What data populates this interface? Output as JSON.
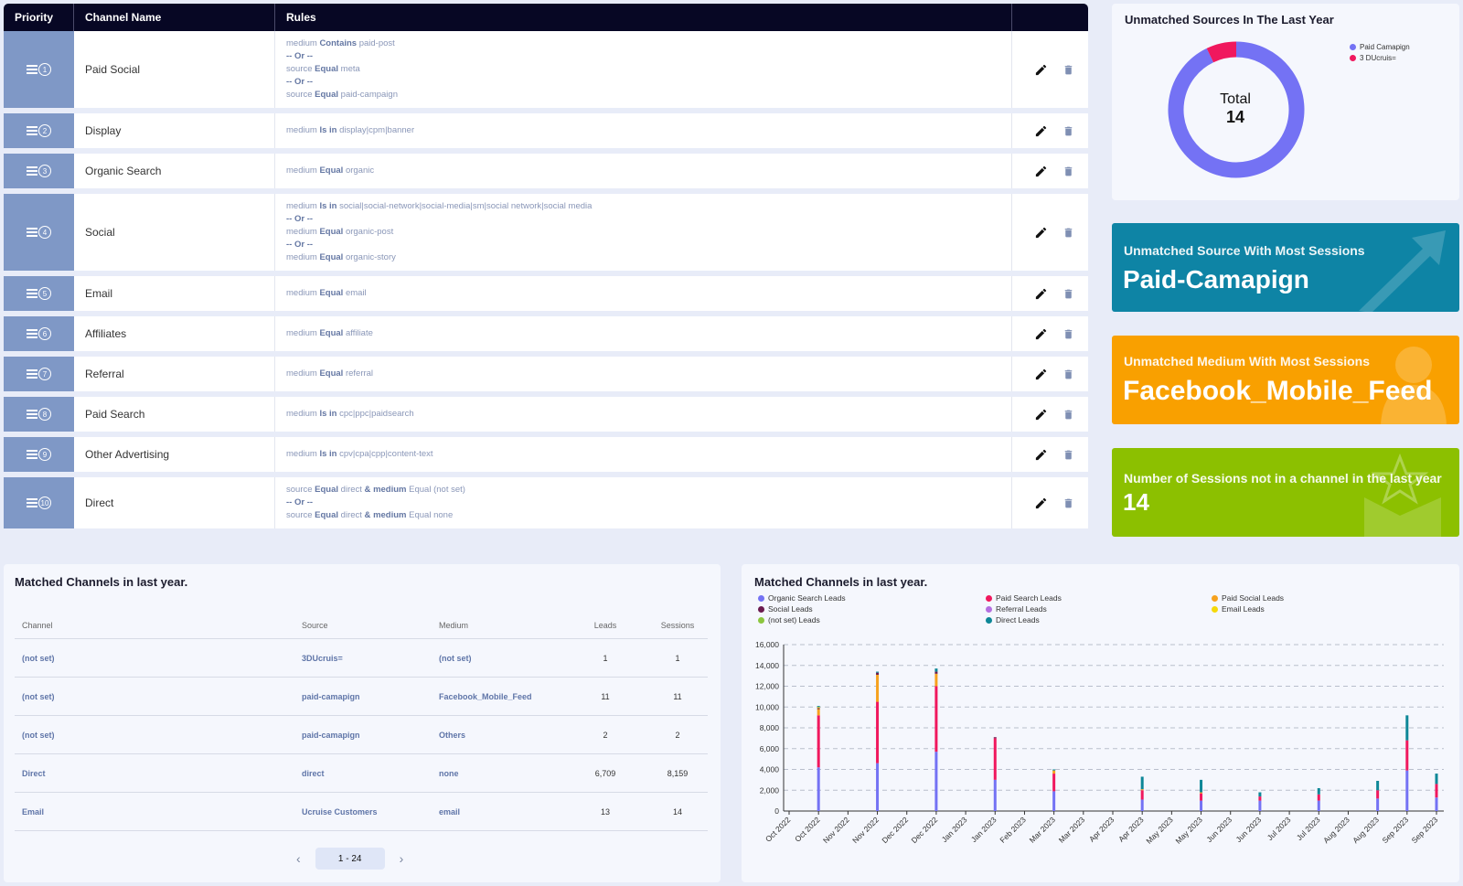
{
  "rules_table": {
    "headers": {
      "priority": "Priority",
      "channel_name": "Channel Name",
      "rules": "Rules"
    },
    "rows": [
      {
        "priority": "1",
        "name": "Paid Social",
        "rules": [
          [
            "medium",
            "Contains",
            "paid-post"
          ],
          "or",
          [
            "source",
            "Equal",
            "meta"
          ],
          "or",
          [
            "source",
            "Equal",
            "paid-campaign"
          ]
        ]
      },
      {
        "priority": "2",
        "name": "Display",
        "rules": [
          [
            "medium",
            "Is in",
            "display|cpm|banner"
          ]
        ]
      },
      {
        "priority": "3",
        "name": "Organic Search",
        "rules": [
          [
            "medium",
            "Equal",
            "organic"
          ]
        ]
      },
      {
        "priority": "4",
        "name": "Social",
        "rules": [
          [
            "medium",
            "Is in",
            "social|social-network|social-media|sm|social network|social media"
          ],
          "or",
          [
            "medium",
            "Equal",
            "organic-post"
          ],
          "or",
          [
            "medium",
            "Equal",
            "organic-story"
          ]
        ]
      },
      {
        "priority": "5",
        "name": "Email",
        "rules": [
          [
            "medium",
            "Equal",
            "email"
          ]
        ]
      },
      {
        "priority": "6",
        "name": "Affiliates",
        "rules": [
          [
            "medium",
            "Equal",
            "affiliate"
          ]
        ]
      },
      {
        "priority": "7",
        "name": "Referral",
        "rules": [
          [
            "medium",
            "Equal",
            "referral"
          ]
        ]
      },
      {
        "priority": "8",
        "name": "Paid Search",
        "rules": [
          [
            "medium",
            "Is in",
            "cpc|ppc|paidsearch"
          ]
        ]
      },
      {
        "priority": "9",
        "name": "Other Advertising",
        "rules": [
          [
            "medium",
            "Is in",
            "cpv|cpa|cpp|content-text"
          ]
        ]
      },
      {
        "priority": "10",
        "name": "Direct",
        "rules": [
          [
            "source",
            "Equal",
            "direct",
            "&",
            "medium",
            "Equal",
            "(not set)"
          ],
          "or",
          [
            "source",
            "Equal",
            "direct",
            "&",
            "medium",
            "Equal",
            "none"
          ]
        ]
      }
    ],
    "or_label": "-- Or --",
    "edit_icon": "pencil-icon",
    "delete_icon": "trash-icon"
  },
  "donut": {
    "title": "Unmatched Sources In The Last Year",
    "total_label": "Total",
    "total_value": "14",
    "slices": [
      {
        "label": "Paid Camapign",
        "value": 13,
        "color": "#7472f4"
      },
      {
        "label": "3 DUcruis=",
        "value": 1,
        "color": "#f0185e"
      }
    ]
  },
  "stats": {
    "source": {
      "label": "Unmatched Source With Most Sessions",
      "value": "Paid-Camapign",
      "color": "#0e84a5",
      "icon": "trending-arrow-icon"
    },
    "medium": {
      "label": "Unmatched Medium With Most Sessions",
      "value": "Facebook_Mobile_Feed",
      "color": "#f9a000",
      "icon": "user-icon"
    },
    "count": {
      "label": "Number of Sessions not in a channel in the last year",
      "value": "14",
      "color": "#8cc000",
      "icon": "star-box-icon"
    }
  },
  "matched_table": {
    "title": "Matched Channels in last year.",
    "headers": [
      "Channel",
      "Source",
      "Medium",
      "Leads",
      "Sessions"
    ],
    "rows": [
      [
        "(not set)",
        "3DUcruis=",
        "(not set)",
        "1",
        "1"
      ],
      [
        "(not set)",
        "paid-camapign",
        "Facebook_Mobile_Feed",
        "11",
        "11"
      ],
      [
        "(not set)",
        "paid-camapign",
        "Others",
        "2",
        "2"
      ],
      [
        "Direct",
        "direct",
        "none",
        "6,709",
        "8,159"
      ],
      [
        "Email",
        "Ucruise Customers",
        "email",
        "13",
        "14"
      ]
    ],
    "pagination": {
      "label": "1 - 24",
      "prev": "‹",
      "next": "›"
    }
  },
  "chart_data": {
    "type": "bar",
    "stacked": true,
    "title": "Matched Channels in last year.",
    "ylim": [
      0,
      16000
    ],
    "yticks": [
      "0",
      "2,000",
      "4,000",
      "6,000",
      "8,000",
      "10,000",
      "12,000",
      "14,000",
      "16,000"
    ],
    "grid": true,
    "legend_placement": "top",
    "categories": [
      "Oct 2022",
      "Oct 2022",
      "Nov 2022",
      "Nov 2022",
      "Dec 2022",
      "Dec 2022",
      "Jan 2023",
      "Jan 2023",
      "Feb 2023",
      "Mar 2023",
      "Mar 2023",
      "Apr 2023",
      "Apr 2023",
      "May 2023",
      "May 2023",
      "Jun 2023",
      "Jun 2023",
      "Jul 2023",
      "Jul 2023",
      "Aug 2023",
      "Aug 2023",
      "Sep 2023",
      "Sep 2023"
    ],
    "series": [
      {
        "name": "Organic Search Leads",
        "color": "#7472f4",
        "values": [
          0,
          4200,
          0,
          4600,
          0,
          5700,
          0,
          3000,
          0,
          1900,
          0,
          0,
          1100,
          0,
          1000,
          0,
          1000,
          0,
          1000,
          0,
          1200,
          3900,
          1300
        ]
      },
      {
        "name": "Paid Search Leads",
        "color": "#f0185e",
        "values": [
          0,
          5000,
          0,
          5900,
          0,
          6300,
          0,
          4000,
          0,
          1700,
          0,
          0,
          900,
          0,
          700,
          0,
          400,
          0,
          600,
          0,
          800,
          2900,
          1300
        ]
      },
      {
        "name": "Paid Social Leads",
        "color": "#f6a21e",
        "values": [
          0,
          600,
          0,
          2600,
          0,
          1200,
          0,
          0,
          0,
          300,
          0,
          0,
          100,
          0,
          100,
          0,
          0,
          0,
          0,
          0,
          0,
          0,
          0
        ]
      },
      {
        "name": "Social Leads",
        "color": "#6b1b4f",
        "values": [
          0,
          100,
          0,
          200,
          0,
          200,
          0,
          100,
          0,
          0,
          0,
          0,
          0,
          0,
          0,
          0,
          0,
          0,
          0,
          0,
          0,
          0,
          0
        ]
      },
      {
        "name": "Referral Leads",
        "color": "#b46fe0",
        "values": [
          0,
          0,
          0,
          0,
          0,
          0,
          0,
          0,
          0,
          0,
          0,
          0,
          0,
          0,
          0,
          0,
          0,
          0,
          0,
          0,
          0,
          0,
          0
        ]
      },
      {
        "name": "Email Leads",
        "color": "#f5d90a",
        "values": [
          0,
          100,
          0,
          0,
          0,
          0,
          0,
          0,
          0,
          0,
          0,
          0,
          0,
          0,
          0,
          0,
          0,
          0,
          0,
          0,
          0,
          0,
          0
        ]
      },
      {
        "name": "(not set) Leads",
        "color": "#8cc63f",
        "values": [
          0,
          0,
          0,
          0,
          0,
          0,
          0,
          0,
          0,
          0,
          0,
          0,
          0,
          0,
          0,
          0,
          0,
          0,
          0,
          0,
          0,
          0,
          0
        ]
      },
      {
        "name": "Direct Leads",
        "color": "#0d8797",
        "values": [
          0,
          100,
          0,
          100,
          0,
          300,
          0,
          0,
          0,
          100,
          0,
          0,
          1200,
          0,
          1200,
          0,
          400,
          0,
          600,
          0,
          900,
          2400,
          1000
        ]
      }
    ]
  }
}
